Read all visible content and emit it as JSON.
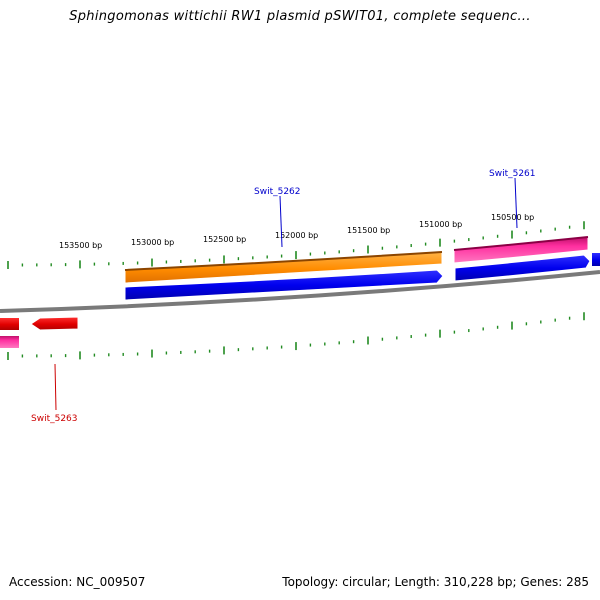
{
  "title": "Sphingomonas wittichii RW1 plasmid pSWIT01, complete sequenc...",
  "footer": {
    "accession": "Accession: NC_009507",
    "stats": "Topology: circular; Length: 310,228 bp; Genes: 285"
  },
  "colors": {
    "backbone": "#808080",
    "tick": "#228B22",
    "forward_label": "#0000CC",
    "reverse_label": "#CC0000"
  },
  "ruler_labels": [
    "153500 bp",
    "153000 bp",
    "152500 bp",
    "152000 bp",
    "151500 bp",
    "151000 bp",
    "150500 bp"
  ],
  "gene_labels": [
    {
      "name": "Swit_5262",
      "strand": "forward"
    },
    {
      "name": "Swit_5261",
      "strand": "forward"
    },
    {
      "name": "Swit_5263",
      "strand": "reverse"
    }
  ],
  "features": [
    {
      "name": "orange-feature-arrow",
      "color": "#FF8C00"
    },
    {
      "name": "blue-feature-arrow-left",
      "color": "#0000E0"
    },
    {
      "name": "pink-feature-arrow-right",
      "color": "#FF1493"
    },
    {
      "name": "blue-feature-arrow-right",
      "color": "#0000E0"
    },
    {
      "name": "red-feature-arrow-left",
      "color": "#E00000"
    }
  ]
}
